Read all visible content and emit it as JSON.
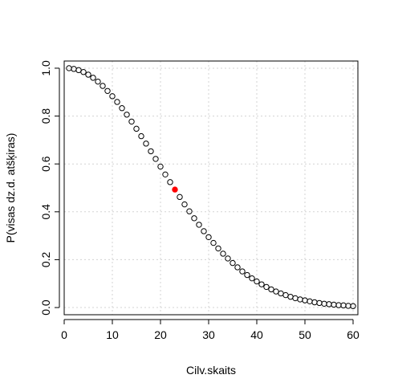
{
  "chart_data": {
    "type": "scatter",
    "title": "",
    "xlabel": "Cilv.skaits",
    "ylabel": "P(visas dz.d. atšķiras)",
    "xlim": [
      0,
      61
    ],
    "ylim": [
      -0.03,
      1.03
    ],
    "x_ticks": [
      0,
      10,
      20,
      30,
      40,
      50,
      60
    ],
    "y_ticks": [
      0.0,
      0.2,
      0.4,
      0.6,
      0.8,
      1.0
    ],
    "x_tick_labels": [
      "0",
      "10",
      "20",
      "30",
      "40",
      "50",
      "60"
    ],
    "y_tick_labels": [
      "0.0",
      "0.2",
      "0.4",
      "0.6",
      "0.8",
      "1.0"
    ],
    "grid": true,
    "grid_color": "#d3d3d3",
    "point_color": "#000000",
    "highlight_color": "#ff0000",
    "highlight_x": 23,
    "x": [
      1,
      2,
      3,
      4,
      5,
      6,
      7,
      8,
      9,
      10,
      11,
      12,
      13,
      14,
      15,
      16,
      17,
      18,
      19,
      20,
      21,
      22,
      23,
      24,
      25,
      26,
      27,
      28,
      29,
      30,
      31,
      32,
      33,
      34,
      35,
      36,
      37,
      38,
      39,
      40,
      41,
      42,
      43,
      44,
      45,
      46,
      47,
      48,
      49,
      50,
      51,
      52,
      53,
      54,
      55,
      56,
      57,
      58,
      59,
      60
    ],
    "y": [
      1.0,
      0.997,
      0.992,
      0.984,
      0.973,
      0.96,
      0.944,
      0.926,
      0.905,
      0.883,
      0.859,
      0.833,
      0.806,
      0.777,
      0.747,
      0.716,
      0.685,
      0.653,
      0.621,
      0.589,
      0.556,
      0.524,
      0.493,
      0.462,
      0.431,
      0.402,
      0.373,
      0.346,
      0.319,
      0.294,
      0.27,
      0.247,
      0.225,
      0.205,
      0.186,
      0.168,
      0.151,
      0.136,
      0.122,
      0.109,
      0.097,
      0.086,
      0.076,
      0.067,
      0.059,
      0.052,
      0.045,
      0.039,
      0.034,
      0.03,
      0.026,
      0.022,
      0.019,
      0.016,
      0.014,
      0.012,
      0.01,
      0.009,
      0.007,
      0.006
    ]
  }
}
